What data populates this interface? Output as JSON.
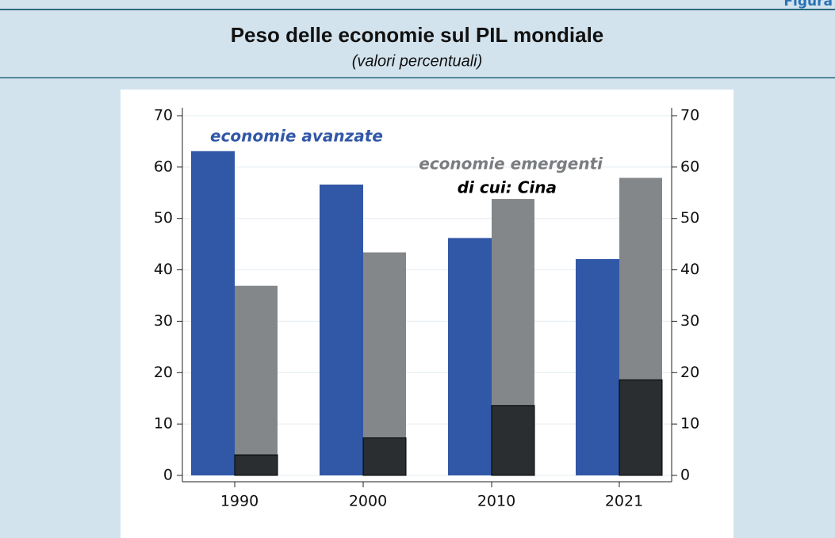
{
  "figure_label": "Figura",
  "chart_data": {
    "type": "bar",
    "title": "Peso delle economie sul PIL mondiale",
    "subtitle": "(valori percentuali)",
    "categories": [
      "1990",
      "2000",
      "2010",
      "2021"
    ],
    "series": [
      {
        "name": "economie avanzate",
        "color": "#3157a7",
        "values": [
          63.1,
          56.6,
          46.2,
          42.1
        ]
      },
      {
        "name": "economie emergenti",
        "color": "#84878a",
        "values": [
          36.9,
          43.4,
          53.8,
          57.9
        ]
      },
      {
        "name": "di cui: Cina",
        "color": "#2b2e31",
        "values": [
          4.0,
          7.3,
          13.6,
          18.6
        ]
      }
    ],
    "ylim": [
      0,
      70
    ],
    "yticks": [
      0,
      10,
      20,
      30,
      40,
      50,
      60,
      70
    ],
    "y2lim": [
      0,
      70
    ],
    "y2ticks": [
      0,
      10,
      20,
      30,
      40,
      50,
      60,
      70
    ],
    "grid": true
  }
}
